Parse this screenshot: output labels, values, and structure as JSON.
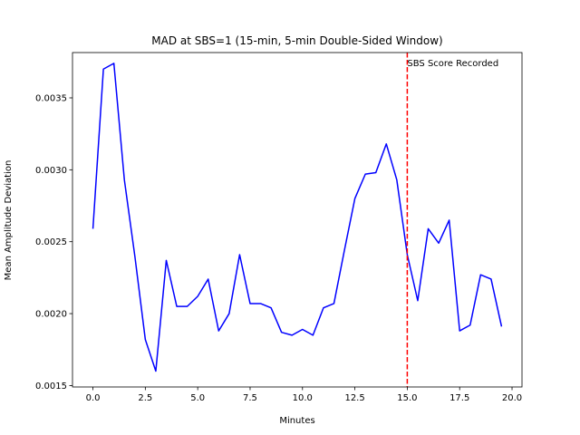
{
  "chart_data": {
    "type": "line",
    "title": "MAD at SBS=1 (15-min, 5-min Double-Sided Window)",
    "xlabel": "Minutes",
    "ylabel": "Mean Amplitude Deviation",
    "xlim": [
      -0.975,
      20.475
    ],
    "ylim": [
      0.00149,
      0.003815
    ],
    "x_ticks": [
      0.0,
      2.5,
      5.0,
      7.5,
      10.0,
      12.5,
      15.0,
      17.5,
      20.0
    ],
    "x_tick_labels": [
      "0.0",
      "2.5",
      "5.0",
      "7.5",
      "10.0",
      "12.5",
      "15.0",
      "17.5",
      "20.0"
    ],
    "y_ticks": [
      0.0015,
      0.002,
      0.0025,
      0.003,
      0.0035
    ],
    "y_tick_labels": [
      "0.0015",
      "0.0020",
      "0.0025",
      "0.0030",
      "0.0035"
    ],
    "grid": false,
    "series": [
      {
        "color": "#0000ff",
        "x": [
          0.0,
          0.5,
          1.0,
          1.5,
          2.0,
          2.5,
          3.0,
          3.5,
          4.0,
          4.5,
          5.0,
          5.5,
          6.0,
          6.5,
          7.0,
          7.5,
          8.0,
          8.5,
          9.0,
          9.5,
          10.0,
          10.5,
          11.0,
          11.5,
          12.0,
          12.5,
          13.0,
          13.5,
          14.0,
          14.5,
          15.0,
          15.5,
          16.0,
          16.5,
          17.0,
          17.5,
          18.0,
          18.5,
          19.0,
          19.5
        ],
        "y": [
          0.00259,
          0.0037,
          0.00374,
          0.00293,
          0.0024,
          0.00182,
          0.0016,
          0.00237,
          0.00205,
          0.00205,
          0.00212,
          0.00224,
          0.00188,
          0.002,
          0.00241,
          0.00207,
          0.00207,
          0.00204,
          0.00187,
          0.00185,
          0.00189,
          0.00185,
          0.00204,
          0.00207,
          0.00244,
          0.0028,
          0.00297,
          0.00298,
          0.00318,
          0.00293,
          0.00241,
          0.00209,
          0.00259,
          0.00249,
          0.00265,
          0.00188,
          0.00192,
          0.00227,
          0.00224,
          0.00191
        ]
      }
    ],
    "annotations": [
      {
        "type": "vline",
        "x": 15.0,
        "color": "#ff0000",
        "style": "dashed",
        "label": "SBS Score Recorded"
      }
    ]
  }
}
